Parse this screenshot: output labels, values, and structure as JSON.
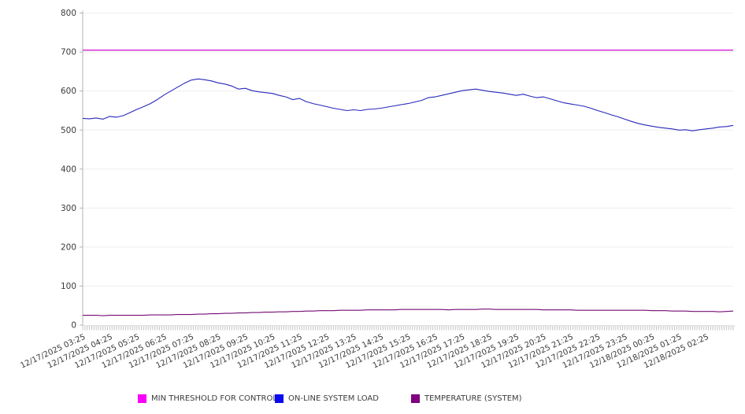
{
  "chart_data": {
    "type": "line",
    "title": "",
    "xlabel": "",
    "ylabel": "",
    "ylim": [
      0,
      800
    ],
    "y_ticks": [
      0,
      100,
      200,
      300,
      400,
      500,
      600,
      700,
      800
    ],
    "grid": true,
    "legend_position": "bottom",
    "x_minor_tick_count": 289,
    "x_labels": [
      "12/17/2025 03:25",
      "12/17/2025 04:25",
      "12/17/2025 05:25",
      "12/17/2025 06:25",
      "12/17/2025 07:25",
      "12/17/2025 08:25",
      "12/17/2025 09:25",
      "12/17/2025 10:25",
      "12/17/2025 11:25",
      "12/17/2025 12:25",
      "12/17/2025 13:25",
      "12/17/2025 14:25",
      "12/17/2025 15:25",
      "12/17/2025 16:25",
      "12/17/2025 17:25",
      "12/17/2025 18:25",
      "12/17/2025 19:25",
      "12/17/2025 20:25",
      "12/17/2025 21:25",
      "12/17/2025 22:25",
      "12/17/2025 23:25",
      "12/18/2025 00:25",
      "12/18/2025 01:25",
      "12/18/2025 02:25"
    ],
    "series": [
      {
        "name": "MIN THRESHOLD FOR CONTROL",
        "color": "#d41fd4",
        "legend_color": "#fb00fb",
        "stroke_width": 1.4,
        "values": [
          705,
          705
        ]
      },
      {
        "name": "ON-LINE SYSTEM LOAD",
        "color": "#2828bb",
        "legend_color": "#0a0aee",
        "stroke_width": 1.1,
        "values": [
          530,
          529,
          531,
          528,
          535,
          533,
          537,
          545,
          553,
          560,
          568,
          578,
          590,
          600,
          610,
          620,
          628,
          631,
          629,
          626,
          621,
          618,
          613,
          605,
          607,
          601,
          598,
          596,
          594,
          589,
          585,
          578,
          581,
          573,
          568,
          564,
          560,
          556,
          553,
          550,
          552,
          550,
          553,
          554,
          556,
          559,
          562,
          565,
          568,
          572,
          576,
          583,
          585,
          589,
          593,
          597,
          601,
          603,
          605,
          602,
          599,
          597,
          595,
          592,
          589,
          592,
          587,
          583,
          585,
          580,
          575,
          570,
          567,
          564,
          561,
          556,
          550,
          545,
          539,
          534,
          528,
          522,
          517,
          513,
          510,
          507,
          505,
          503,
          500,
          501,
          498,
          501,
          503,
          505,
          508,
          509,
          512
        ]
      },
      {
        "name": "TEMPERATURE (SYSTEM)",
        "color": "#740d74",
        "legend_color": "#800080",
        "stroke_width": 1.1,
        "values": [
          25,
          25,
          25,
          24,
          25,
          25,
          25,
          25,
          25,
          25,
          26,
          26,
          26,
          26,
          27,
          27,
          27,
          28,
          28,
          29,
          29,
          30,
          30,
          31,
          31,
          32,
          32,
          33,
          33,
          34,
          34,
          35,
          35,
          36,
          36,
          37,
          37,
          37,
          38,
          38,
          38,
          38,
          39,
          39,
          39,
          39,
          39,
          40,
          40,
          40,
          40,
          40,
          40,
          40,
          39,
          40,
          40,
          40,
          40,
          41,
          41,
          40,
          40,
          40,
          40,
          40,
          40,
          40,
          39,
          39,
          39,
          39,
          39,
          38,
          38,
          38,
          38,
          38,
          38,
          38,
          38,
          38,
          38,
          38,
          37,
          37,
          37,
          36,
          36,
          36,
          35,
          35,
          35,
          35,
          34,
          35,
          36
        ]
      }
    ]
  },
  "legend": {
    "items": [
      {
        "label": "MIN THRESHOLD FOR CONTROL"
      },
      {
        "label": "ON-LINE SYSTEM LOAD"
      },
      {
        "label": "TEMPERATURE (SYSTEM)"
      }
    ]
  }
}
